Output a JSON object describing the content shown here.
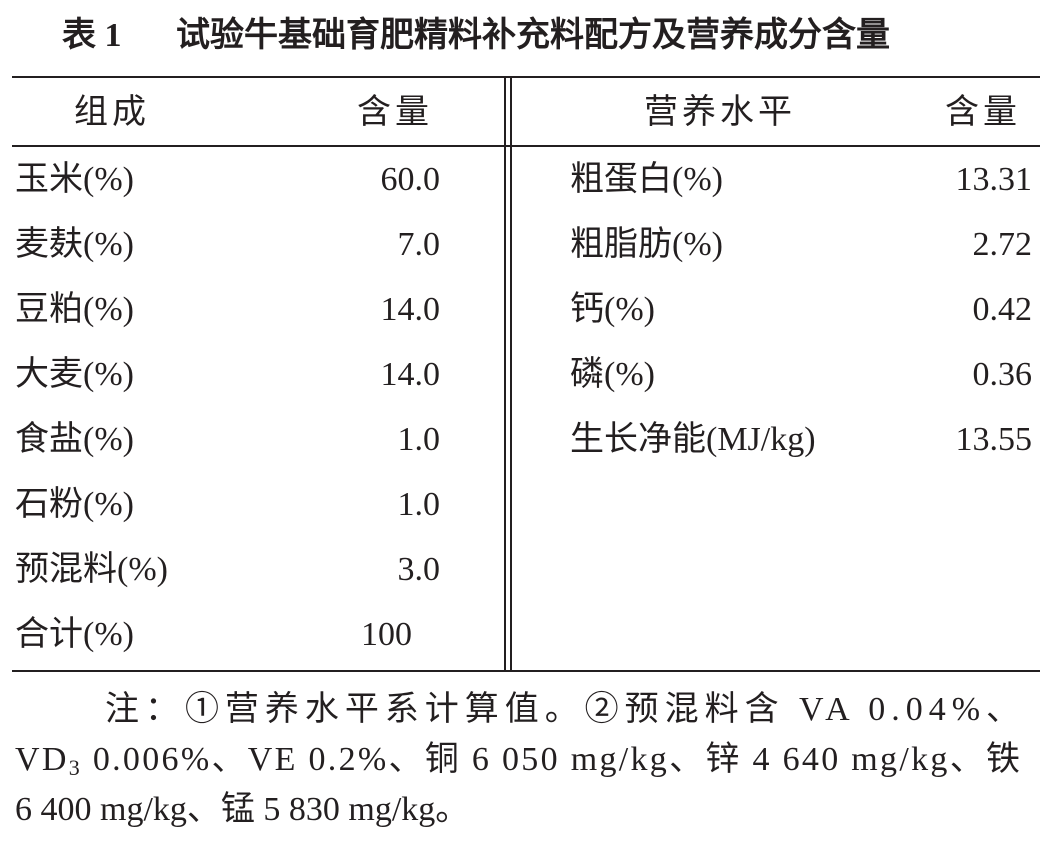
{
  "title": {
    "label": "表 1",
    "text": "试验牛基础育肥精料补充料配方及营养成分含量"
  },
  "left_table": {
    "header": [
      "组成",
      "含量"
    ],
    "rows": [
      [
        "玉米(%)",
        "60.0"
      ],
      [
        "麦麸(%)",
        "7.0"
      ],
      [
        "豆粕(%)",
        "14.0"
      ],
      [
        "大麦(%)",
        "14.0"
      ],
      [
        "食盐(%)",
        "1.0"
      ],
      [
        "石粉(%)",
        "1.0"
      ],
      [
        "预混料(%)",
        "3.0"
      ],
      [
        "合计(%)",
        "100"
      ]
    ]
  },
  "right_table": {
    "header": [
      "营养水平",
      "含量"
    ],
    "rows": [
      [
        "粗蛋白(%)",
        "13.31"
      ],
      [
        "粗脂肪(%)",
        "2.72"
      ],
      [
        "钙(%)",
        "0.42"
      ],
      [
        "磷(%)",
        "0.36"
      ],
      [
        "生长净能(MJ/kg)",
        "13.55"
      ]
    ]
  },
  "note": {
    "lines": [
      [
        "注：①营养水平系计算值。②预混料含 VA 0.04%、"
      ],
      [
        "VD",
        "3",
        " 0.006%、VE 0.2%、铜 6 050 mg/kg、锌 4 640 mg/kg、铁"
      ],
      [
        "6 400 mg/kg、锰 5 830 mg/kg。"
      ]
    ]
  }
}
